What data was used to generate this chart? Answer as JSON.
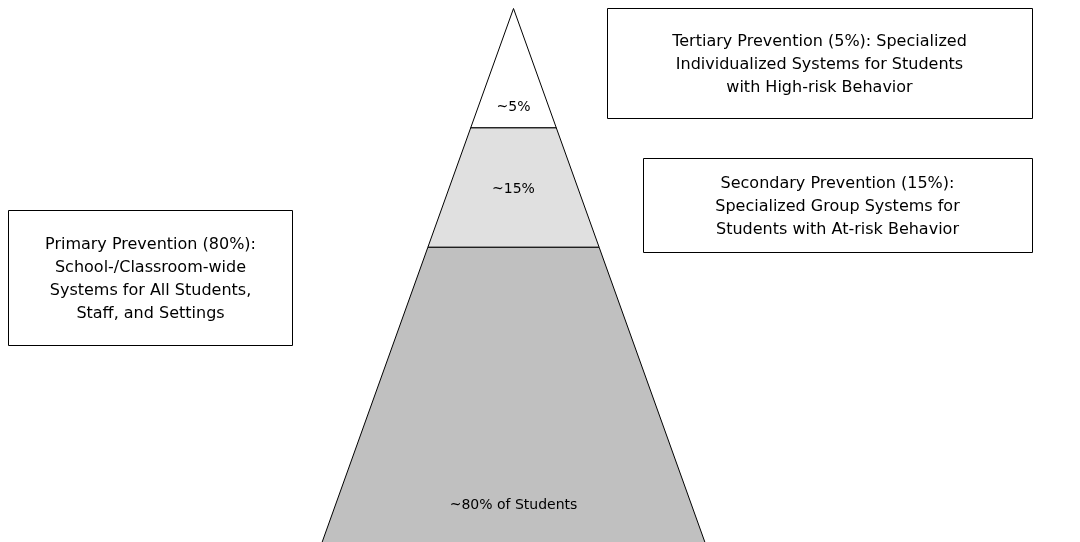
{
  "chart_data": {
    "type": "other",
    "categories": [
      null,
      null,
      null
    ],
    "value_labels": [
      "~5%",
      "~15%",
      "~80% of Students"
    ],
    "values": [
      5,
      15,
      80
    ],
    "colors": [
      "#ffffff",
      "#e0e0e0",
      "#c0c0c0"
    ],
    "annotations": [
      "Tertiary Prevention (5%): Specialized\nIndividualized Systems for Students\nwith High-risk Behavior",
      "Secondary Prevention (15%):\nSpecialized Group Systems for\nStudents with At-risk Behavior",
      "Primary Prevention (80%):\nSchool-/Classroom-wide\nSystems for All Students,\nStaff, and Settings"
    ]
  }
}
